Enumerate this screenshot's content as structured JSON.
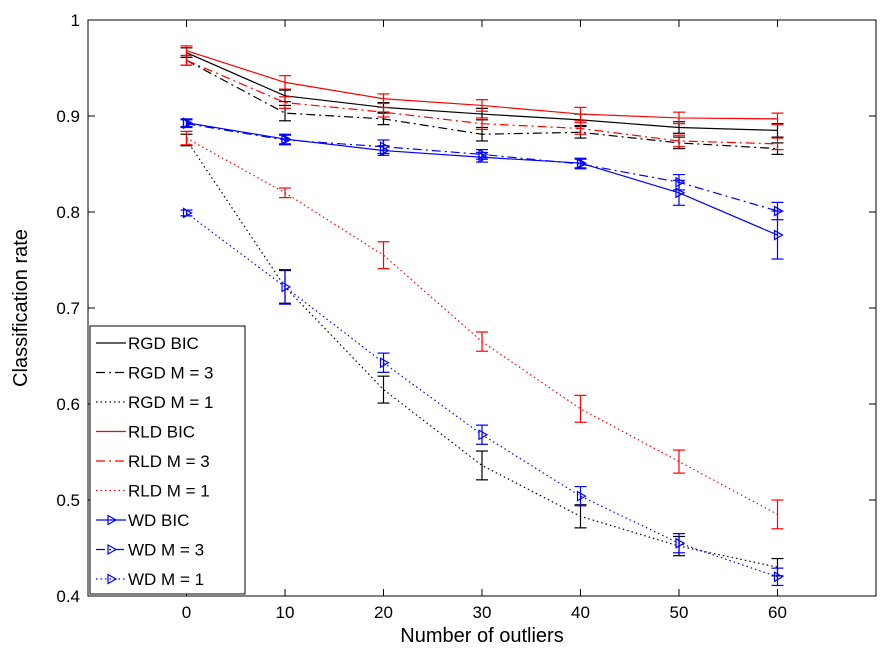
{
  "chart_data": {
    "type": "line",
    "xlabel": "Number of outliers",
    "ylabel": "Classification rate",
    "xlim": [
      -10,
      70
    ],
    "ylim": [
      0.4,
      1.0
    ],
    "xticks": [
      "0",
      "10",
      "20",
      "30",
      "40",
      "50",
      "60"
    ],
    "yticks": [
      "0.4",
      "0.5",
      "0.6",
      "0.7",
      "0.8",
      "0.9",
      "1"
    ],
    "grid": false,
    "legend_position": "bottom-left",
    "x": [
      0,
      10,
      20,
      30,
      40,
      50,
      60
    ],
    "series": [
      {
        "name": "RGD BIC",
        "color": "#000000",
        "linestyle": "solid",
        "marker": "none",
        "values": [
          0.966,
          0.921,
          0.909,
          0.902,
          0.896,
          0.888,
          0.885
        ],
        "errors": [
          0.005,
          0.006,
          0.005,
          0.006,
          0.006,
          0.006,
          0.007
        ]
      },
      {
        "name": "RGD M = 3",
        "color": "#000000",
        "linestyle": "dashdot",
        "marker": "none",
        "values": [
          0.958,
          0.903,
          0.897,
          0.881,
          0.883,
          0.872,
          0.866
        ],
        "errors": [
          0.005,
          0.008,
          0.006,
          0.007,
          0.006,
          0.006,
          0.006
        ]
      },
      {
        "name": "RGD M = 1",
        "color": "#000000",
        "linestyle": "dotted",
        "marker": "none",
        "values": [
          0.875,
          0.722,
          0.615,
          0.536,
          0.483,
          0.452,
          0.43
        ],
        "errors": [
          0.006,
          0.017,
          0.014,
          0.015,
          0.012,
          0.01,
          0.009
        ]
      },
      {
        "name": "RLD BIC",
        "color": "#ff0000",
        "linestyle": "solid",
        "marker": "none",
        "values": [
          0.968,
          0.935,
          0.918,
          0.911,
          0.902,
          0.898,
          0.897
        ],
        "errors": [
          0.005,
          0.007,
          0.005,
          0.006,
          0.007,
          0.006,
          0.006
        ]
      },
      {
        "name": "RLD M = 3",
        "color": "#ff0000",
        "linestyle": "dashdot",
        "marker": "none",
        "values": [
          0.958,
          0.914,
          0.904,
          0.892,
          0.887,
          0.874,
          0.871
        ],
        "errors": [
          0.005,
          0.006,
          0.005,
          0.006,
          0.006,
          0.006,
          0.006
        ]
      },
      {
        "name": "RLD M = 1",
        "color": "#ff0000",
        "linestyle": "dotted",
        "marker": "none",
        "values": [
          0.877,
          0.82,
          0.755,
          0.665,
          0.595,
          0.54,
          0.485
        ],
        "errors": [
          0.007,
          0.005,
          0.014,
          0.01,
          0.014,
          0.012,
          0.015
        ]
      },
      {
        "name": "WD BIC",
        "color": "#0000ff",
        "linestyle": "solid",
        "marker": "triangle-right",
        "values": [
          0.893,
          0.876,
          0.864,
          0.857,
          0.851,
          0.82,
          0.776
        ],
        "errors": [
          0.004,
          0.005,
          0.005,
          0.005,
          0.005,
          0.013,
          0.025
        ]
      },
      {
        "name": "WD M = 3",
        "color": "#0000ff",
        "linestyle": "dashdot",
        "marker": "triangle-right",
        "values": [
          0.892,
          0.875,
          0.868,
          0.86,
          0.85,
          0.831,
          0.801
        ],
        "errors": [
          0.004,
          0.005,
          0.007,
          0.005,
          0.005,
          0.008,
          0.009
        ]
      },
      {
        "name": "WD M = 1",
        "color": "#0000ff",
        "linestyle": "dotted",
        "marker": "triangle-right",
        "values": [
          0.799,
          0.722,
          0.643,
          0.568,
          0.504,
          0.455,
          0.42
        ],
        "errors": [
          0.003,
          0.018,
          0.01,
          0.01,
          0.01,
          0.01,
          0.009
        ]
      }
    ]
  }
}
